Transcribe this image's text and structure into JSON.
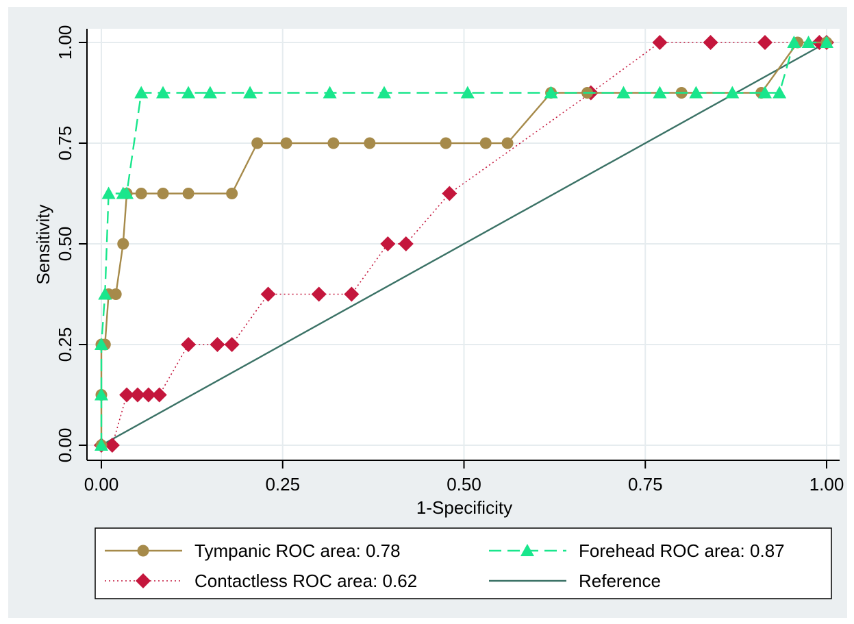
{
  "chart_data": {
    "type": "line",
    "xlabel": "1-Specificity",
    "ylabel": "Sensitivity",
    "xlim": [
      0,
      1
    ],
    "ylim": [
      0,
      1
    ],
    "xticks": [
      "0.00",
      "0.25",
      "0.50",
      "0.75",
      "1.00"
    ],
    "yticks": [
      "0.00",
      "0.25",
      "0.50",
      "0.75",
      "1.00"
    ],
    "grid": true,
    "legend_position": "bottom",
    "series": [
      {
        "name": "Tympanic ROC area: 0.78",
        "color": "#a68a4a",
        "line_style": "solid",
        "marker": "circle",
        "points": [
          [
            0,
            0
          ],
          [
            0,
            0.125
          ],
          [
            0,
            0.25
          ],
          [
            0.005,
            0.25
          ],
          [
            0.01,
            0.375
          ],
          [
            0.02,
            0.375
          ],
          [
            0.03,
            0.5
          ],
          [
            0.035,
            0.625
          ],
          [
            0.055,
            0.625
          ],
          [
            0.085,
            0.625
          ],
          [
            0.12,
            0.625
          ],
          [
            0.18,
            0.625
          ],
          [
            0.215,
            0.75
          ],
          [
            0.255,
            0.75
          ],
          [
            0.32,
            0.75
          ],
          [
            0.37,
            0.75
          ],
          [
            0.475,
            0.75
          ],
          [
            0.53,
            0.75
          ],
          [
            0.56,
            0.75
          ],
          [
            0.62,
            0.875
          ],
          [
            0.67,
            0.875
          ],
          [
            0.8,
            0.875
          ],
          [
            0.91,
            0.875
          ],
          [
            0.96,
            1
          ],
          [
            1,
            1
          ]
        ]
      },
      {
        "name": "Forehead ROC area: 0.87",
        "color": "#19e68c",
        "line_style": "dashed",
        "marker": "triangle",
        "points": [
          [
            0,
            0
          ],
          [
            0,
            0.125
          ],
          [
            0,
            0.25
          ],
          [
            0.005,
            0.375
          ],
          [
            0.01,
            0.625
          ],
          [
            0.03,
            0.625
          ],
          [
            0.035,
            0.625
          ],
          [
            0.055,
            0.875
          ],
          [
            0.085,
            0.875
          ],
          [
            0.12,
            0.875
          ],
          [
            0.15,
            0.875
          ],
          [
            0.205,
            0.875
          ],
          [
            0.315,
            0.875
          ],
          [
            0.39,
            0.875
          ],
          [
            0.505,
            0.875
          ],
          [
            0.62,
            0.875
          ],
          [
            0.72,
            0.875
          ],
          [
            0.77,
            0.875
          ],
          [
            0.82,
            0.875
          ],
          [
            0.87,
            0.875
          ],
          [
            0.915,
            0.875
          ],
          [
            0.935,
            0.875
          ],
          [
            0.955,
            1
          ],
          [
            0.975,
            1
          ],
          [
            1,
            1
          ]
        ]
      },
      {
        "name": "Contactless ROC area: 0.62",
        "color": "#c4163c",
        "line_style": "dotted",
        "marker": "diamond",
        "points": [
          [
            0,
            0
          ],
          [
            0.015,
            0
          ],
          [
            0.035,
            0.125
          ],
          [
            0.05,
            0.125
          ],
          [
            0.065,
            0.125
          ],
          [
            0.08,
            0.125
          ],
          [
            0.12,
            0.25
          ],
          [
            0.16,
            0.25
          ],
          [
            0.18,
            0.25
          ],
          [
            0.23,
            0.375
          ],
          [
            0.3,
            0.375
          ],
          [
            0.345,
            0.375
          ],
          [
            0.395,
            0.5
          ],
          [
            0.42,
            0.5
          ],
          [
            0.48,
            0.625
          ],
          [
            0.675,
            0.875
          ],
          [
            0.77,
            1
          ],
          [
            0.84,
            1
          ],
          [
            0.915,
            1
          ],
          [
            0.99,
            1
          ],
          [
            1,
            1
          ]
        ]
      },
      {
        "name": "Reference",
        "color": "#3b7266",
        "line_style": "solid",
        "marker": "none",
        "points": [
          [
            0,
            0
          ],
          [
            1,
            1
          ]
        ]
      }
    ]
  }
}
